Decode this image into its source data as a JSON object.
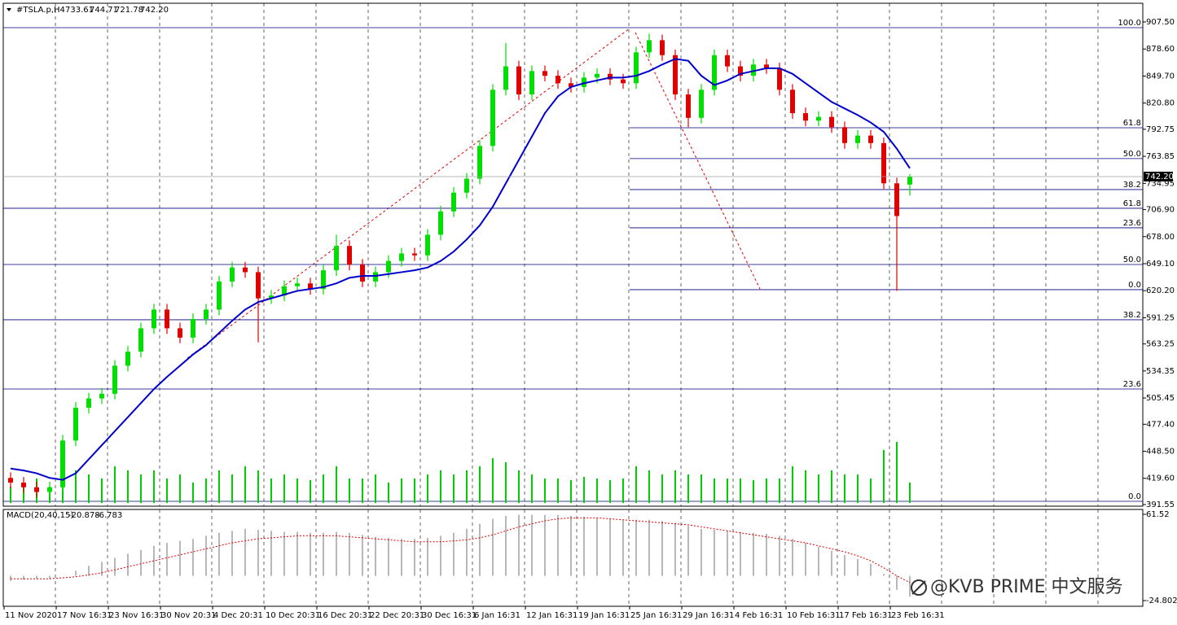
{
  "chart_data": {
    "type": "candlestick",
    "symbol": "#TSLA.p,H4",
    "header_values": [
      "733.61",
      "744.71",
      "721.78",
      "742.20"
    ],
    "categories": [
      "11 Nov 2020",
      null,
      null,
      null,
      "17 Nov 16:31",
      null,
      null,
      null,
      "23 Nov 16:31",
      null,
      null,
      null,
      "30 Nov 20:31",
      null,
      null,
      null,
      "4 Dec 20:31",
      null,
      null,
      null,
      "10 Dec 20:31",
      null,
      null,
      null,
      "16 Dec 20:31",
      null,
      null,
      null,
      "22 Dec 20:31",
      null,
      null,
      null,
      "30 Dec 16:31",
      null,
      null,
      null,
      "6 Jan 16:31",
      null,
      null,
      null,
      "12 Jan 16:31",
      null,
      null,
      null,
      "19 Jan 16:31",
      null,
      null,
      null,
      "25 Jan 16:31",
      null,
      null,
      null,
      "29 Jan 16:31",
      null,
      null,
      null,
      "4 Feb 16:31",
      null,
      null,
      null,
      "10 Feb 16:31",
      null,
      null,
      null,
      "17 Feb 16:31",
      null,
      null,
      null,
      "23 Feb 16:31",
      null
    ],
    "open": [
      420,
      415,
      410,
      405,
      410,
      460,
      495,
      505,
      510,
      540,
      555,
      580,
      600,
      580,
      570,
      590,
      600,
      630,
      645,
      640,
      612,
      615,
      625,
      628,
      622,
      642,
      668,
      648,
      630,
      640,
      652,
      660,
      658,
      680,
      705,
      725,
      740,
      775,
      835,
      860,
      830,
      855,
      850,
      842,
      838,
      848,
      852,
      846,
      842,
      875,
      888,
      872,
      830,
      805,
      835,
      872,
      860,
      850,
      862,
      858,
      835,
      810,
      802,
      806,
      795,
      778,
      786,
      778,
      735,
      733.61
    ],
    "high": [
      426,
      421,
      416,
      416,
      466,
      501,
      511,
      516,
      546,
      561,
      586,
      606,
      606,
      586,
      596,
      606,
      636,
      651,
      651,
      646,
      621,
      631,
      634,
      634,
      648,
      680,
      674,
      654,
      646,
      658,
      666,
      666,
      686,
      711,
      731,
      746,
      781,
      841,
      885,
      866,
      861,
      861,
      856,
      848,
      854,
      858,
      858,
      852,
      881,
      895,
      894,
      878,
      836,
      841,
      878,
      878,
      866,
      868,
      868,
      864,
      841,
      816,
      812,
      812,
      801,
      792,
      792,
      784,
      741,
      744.71
    ],
    "low": [
      409,
      404,
      399,
      399,
      404,
      454,
      489,
      499,
      504,
      534,
      549,
      574,
      574,
      564,
      564,
      584,
      594,
      624,
      634,
      565,
      606,
      609,
      619,
      616,
      616,
      636,
      642,
      624,
      624,
      634,
      646,
      652,
      652,
      674,
      699,
      719,
      734,
      769,
      829,
      824,
      824,
      844,
      836,
      832,
      832,
      842,
      840,
      836,
      836,
      869,
      866,
      824,
      795,
      799,
      829,
      854,
      844,
      844,
      852,
      829,
      804,
      796,
      796,
      789,
      772,
      772,
      772,
      729,
      620,
      721.78
    ],
    "close": [
      415,
      410,
      405,
      410,
      460,
      495,
      505,
      510,
      540,
      555,
      580,
      600,
      580,
      570,
      590,
      600,
      630,
      645,
      640,
      612,
      615,
      625,
      628,
      622,
      642,
      668,
      648,
      630,
      640,
      652,
      660,
      658,
      680,
      705,
      725,
      740,
      775,
      835,
      860,
      830,
      855,
      850,
      842,
      838,
      848,
      852,
      846,
      842,
      875,
      888,
      872,
      830,
      805,
      835,
      872,
      860,
      850,
      862,
      858,
      835,
      810,
      802,
      806,
      795,
      778,
      786,
      778,
      735,
      700,
      742.2
    ],
    "up_color": "#00dd00",
    "down_color": "#e00000",
    "ma": {
      "color": "#0000cc",
      "values": [
        430,
        428,
        425,
        420,
        418,
        425,
        440,
        455,
        470,
        485,
        500,
        515,
        528,
        540,
        552,
        562,
        575,
        588,
        600,
        608,
        612,
        616,
        620,
        622,
        624,
        628,
        634,
        636,
        636,
        638,
        640,
        642,
        645,
        652,
        662,
        675,
        690,
        710,
        735,
        760,
        785,
        810,
        828,
        838,
        842,
        845,
        848,
        848,
        850,
        855,
        862,
        868,
        866,
        850,
        840,
        845,
        852,
        855,
        858,
        858,
        852,
        842,
        832,
        822,
        815,
        808,
        800,
        790,
        772,
        751
      ]
    },
    "volume": {
      "color": "#00cc00",
      "values": [
        20,
        25,
        30,
        20,
        45,
        40,
        35,
        30,
        45,
        40,
        35,
        40,
        30,
        35,
        25,
        30,
        40,
        35,
        45,
        40,
        30,
        35,
        30,
        28,
        35,
        45,
        30,
        30,
        35,
        25,
        30,
        30,
        35,
        40,
        35,
        40,
        45,
        55,
        50,
        40,
        35,
        30,
        30,
        28,
        32,
        30,
        28,
        30,
        45,
        40,
        35,
        40,
        35,
        35,
        30,
        30,
        30,
        28,
        30,
        30,
        45,
        40,
        35,
        40,
        35,
        35,
        30,
        65,
        75,
        25
      ]
    },
    "ylim": [
      389.8,
      927.5
    ],
    "yticks": [
      {
        "value": 907.5,
        "label": "907.50"
      },
      {
        "value": 878.6,
        "label": "878.60"
      },
      {
        "value": 849.7,
        "label": "849.70"
      },
      {
        "value": 820.8,
        "label": "820.80"
      },
      {
        "value": 792.75,
        "label": "792.75"
      },
      {
        "value": 763.85,
        "label": "763.85"
      },
      {
        "value": 734.95,
        "label": "734.95"
      },
      {
        "value": 706.9,
        "label": "706.90"
      },
      {
        "value": 678,
        "label": "678.00"
      },
      {
        "value": 649.1,
        "label": "649.10"
      },
      {
        "value": 620.2,
        "label": "620.20"
      },
      {
        "value": 591.25,
        "label": "591.25"
      },
      {
        "value": 563.25,
        "label": "563.25"
      },
      {
        "value": 534.35,
        "label": "534.35"
      },
      {
        "value": 505.45,
        "label": "505.45"
      },
      {
        "value": 477.4,
        "label": "477.40"
      },
      {
        "value": 448.5,
        "label": "448.50"
      },
      {
        "value": 419.6,
        "label": "419.60"
      },
      {
        "value": 391.55,
        "label": "391.55"
      }
    ],
    "fib_color": "#000080",
    "fib_full": [
      {
        "label": "100.0",
        "value": 901.4
      },
      {
        "label": "61.8",
        "value": 708.3
      },
      {
        "label": "50.0",
        "value": 648.2
      },
      {
        "label": "38.2",
        "value": 589.1
      },
      {
        "label": "23.6",
        "value": 515.1
      },
      {
        "label": "0.0",
        "value": 395.0
      }
    ],
    "fib_recent": [
      {
        "label": "61.8",
        "value": 794.4
      },
      {
        "label": "50.0",
        "value": 761.4
      },
      {
        "label": "38.2",
        "value": 728.3
      },
      {
        "label": "23.6",
        "value": 687.4
      },
      {
        "label": "0.0",
        "value": 621.3
      }
    ],
    "macd": {
      "label": "MACD(20,40,15)",
      "hist_color": "#b8b8b8",
      "signal_color": "#e00000",
      "histogram": [
        -5,
        -4,
        -3,
        -3,
        0,
        5,
        10,
        14,
        18,
        22,
        26,
        30,
        33,
        35,
        37,
        40,
        43,
        45,
        47,
        46,
        45,
        44,
        44,
        43,
        43,
        44,
        43,
        41,
        39,
        38,
        37,
        37,
        38,
        40,
        43,
        47,
        52,
        57,
        60,
        61,
        61,
        61,
        61,
        60,
        59,
        58,
        57,
        56,
        56,
        56,
        55,
        53,
        50,
        47,
        46,
        45,
        44,
        43,
        42,
        40,
        37,
        33,
        29,
        25,
        21,
        17,
        12,
        2,
        -14,
        -20.878
      ],
      "signal": [
        -3,
        -3,
        -3,
        -3,
        -2,
        -1,
        1,
        3,
        6,
        9,
        12,
        15,
        18,
        21,
        24,
        27,
        30,
        33,
        35,
        37,
        38,
        39,
        40,
        40,
        40,
        40,
        39,
        38,
        37,
        36,
        35,
        34,
        34,
        34,
        35,
        36,
        38,
        41,
        45,
        49,
        52,
        55,
        57,
        58,
        58,
        58,
        57,
        56,
        55,
        54,
        53,
        52,
        51,
        49,
        47,
        45,
        43,
        41,
        39,
        37,
        35,
        33,
        30,
        27,
        24,
        20,
        15,
        8,
        0,
        -6.783
      ],
      "ylim": [
        -30.5,
        66.4
      ],
      "yticks": [
        61.52,
        -24.802
      ]
    },
    "watermark": "@KVB PRIME 中文服务"
  }
}
